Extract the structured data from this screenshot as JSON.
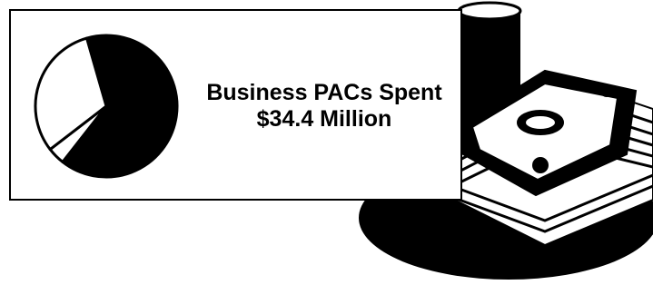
{
  "chart_data": {
    "type": "pie",
    "title": "Business PACs Spent $34.4 Million",
    "values": [
      65,
      4,
      31
    ],
    "colors": [
      "#000000",
      "#ffffff",
      "#ffffff"
    ]
  }
}
